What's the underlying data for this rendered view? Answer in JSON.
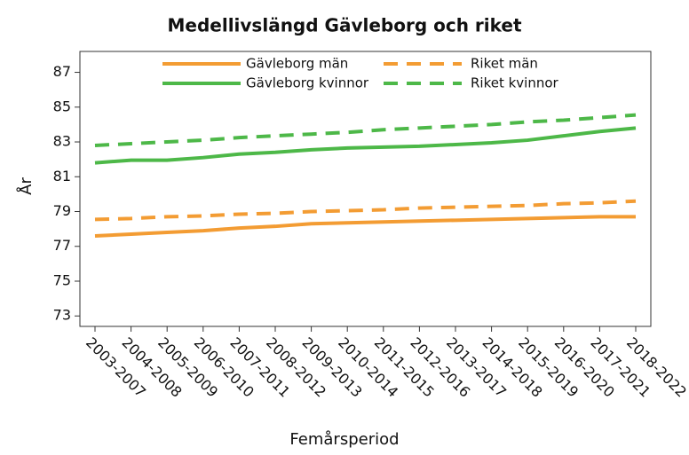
{
  "chart_data": {
    "type": "line",
    "title": "Medellivslängd Gävleborg och riket",
    "x_label": "Femårsperiod",
    "y_label": "År",
    "categories": [
      "2003-2007",
      "2004-2008",
      "2005-2009",
      "2006-2010",
      "2007-2011",
      "2008-2012",
      "2009-2013",
      "2010-2014",
      "2011-2015",
      "2012-2016",
      "2013-2017",
      "2014-2018",
      "2015-2019",
      "2016-2020",
      "2017-2021",
      "2018-2022"
    ],
    "series": [
      {
        "name": "Gävleborg män",
        "color": "#f39c33",
        "dash": false,
        "values": [
          77.6,
          77.7,
          77.8,
          77.9,
          78.05,
          78.15,
          78.3,
          78.35,
          78.4,
          78.45,
          78.5,
          78.55,
          78.6,
          78.65,
          78.7,
          78.7
        ]
      },
      {
        "name": "Riket män",
        "color": "#f39c33",
        "dash": true,
        "values": [
          78.55,
          78.6,
          78.7,
          78.75,
          78.85,
          78.9,
          79.0,
          79.05,
          79.1,
          79.2,
          79.25,
          79.3,
          79.35,
          79.45,
          79.5,
          79.6
        ]
      },
      {
        "name": "Gävleborg kvinnor",
        "color": "#4db848",
        "dash": false,
        "values": [
          81.8,
          81.95,
          81.95,
          82.1,
          82.3,
          82.4,
          82.55,
          82.65,
          82.7,
          82.75,
          82.85,
          82.95,
          83.1,
          83.35,
          83.6,
          83.8
        ]
      },
      {
        "name": "Riket kvinnor",
        "color": "#4db848",
        "dash": true,
        "values": [
          82.8,
          82.9,
          83.0,
          83.1,
          83.25,
          83.35,
          83.45,
          83.55,
          83.7,
          83.8,
          83.9,
          84.0,
          84.15,
          84.25,
          84.4,
          84.55
        ]
      }
    ],
    "ylim": [
      72.4,
      88.2
    ],
    "yticks": [
      73,
      75,
      77,
      79,
      81,
      83,
      85,
      87
    ],
    "grid": false
  }
}
